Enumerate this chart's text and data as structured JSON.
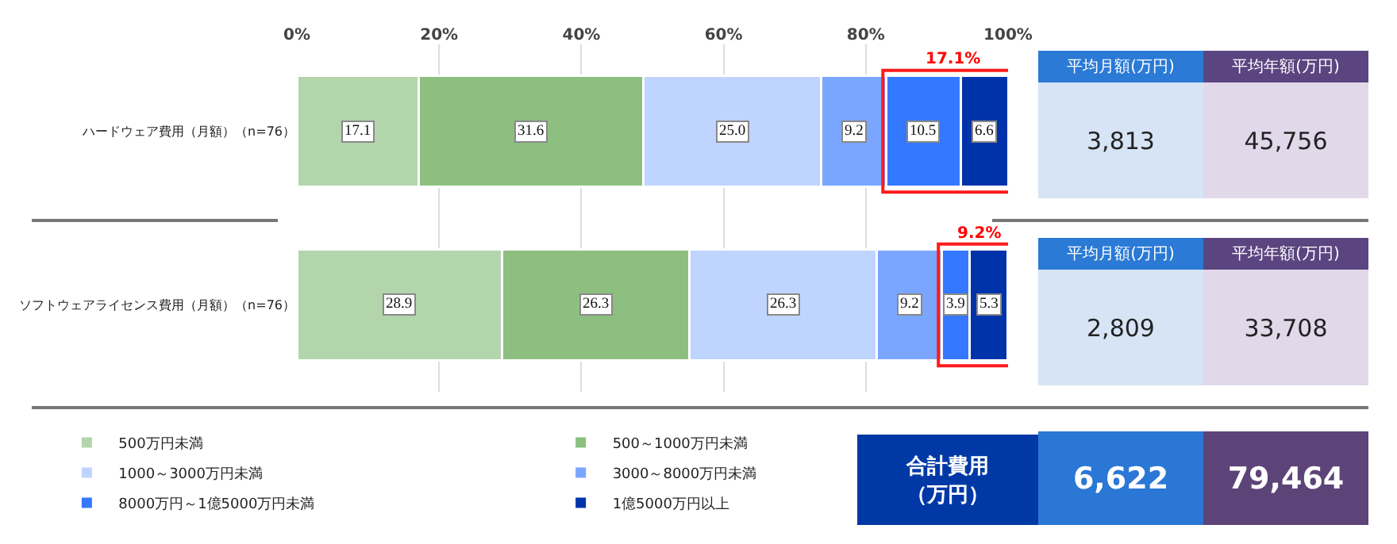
{
  "chart_data": {
    "type": "bar",
    "orientation": "horizontal",
    "stacked": true,
    "categories": [
      "ハードウェア費用（月額）（n=76）",
      "ソフトウェアライセンス費用（月額）（n=76）"
    ],
    "series": [
      {
        "name": "500万円未満",
        "color": "#b3d5ac",
        "values": [
          17.1,
          28.9
        ],
        "value_labels": [
          "17.1",
          "28.9"
        ]
      },
      {
        "name": "500～1000万円未満",
        "color": "#8dbf80",
        "values": [
          31.6,
          26.3
        ],
        "value_labels": [
          "31.6",
          "26.3"
        ]
      },
      {
        "name": "1000～3000万円未満",
        "color": "#bfd4ff",
        "values": [
          25.0,
          26.3
        ],
        "value_labels": [
          "25.0",
          "26.3"
        ]
      },
      {
        "name": "3000～8000万円未満",
        "color": "#7aa6ff",
        "values": [
          9.2,
          9.2
        ],
        "value_labels": [
          "9.2",
          "9.2"
        ]
      },
      {
        "name": "8000万円～1億5000万円未満",
        "color": "#3478ff",
        "values": [
          10.5,
          3.9
        ],
        "value_labels": [
          "10.5",
          "3.9"
        ]
      },
      {
        "name": "1億5000万円以上",
        "color": "#0033aa",
        "values": [
          6.6,
          5.3
        ],
        "value_labels": [
          "6.6",
          "5.3"
        ]
      }
    ],
    "xlim": [
      0,
      100
    ],
    "xticks": [
      {
        "value": 0,
        "label": "0%"
      },
      {
        "value": 20,
        "label": "20%"
      },
      {
        "value": 40,
        "label": "40%"
      },
      {
        "value": 60,
        "label": "60%"
      },
      {
        "value": 80,
        "label": "80%"
      },
      {
        "value": 100,
        "label": "100%"
      }
    ],
    "grid": "x",
    "legend": "bottom left",
    "annotations": [
      "17.1%",
      "9.2%",
      "平均月額(万円)",
      "平均年額(万円)",
      "3,813",
      "45,756",
      "平均月額(万円)",
      "平均年額(万円)",
      "2,809",
      "33,708",
      "合計費用（万円）",
      "6,622",
      "79,464"
    ]
  }
}
